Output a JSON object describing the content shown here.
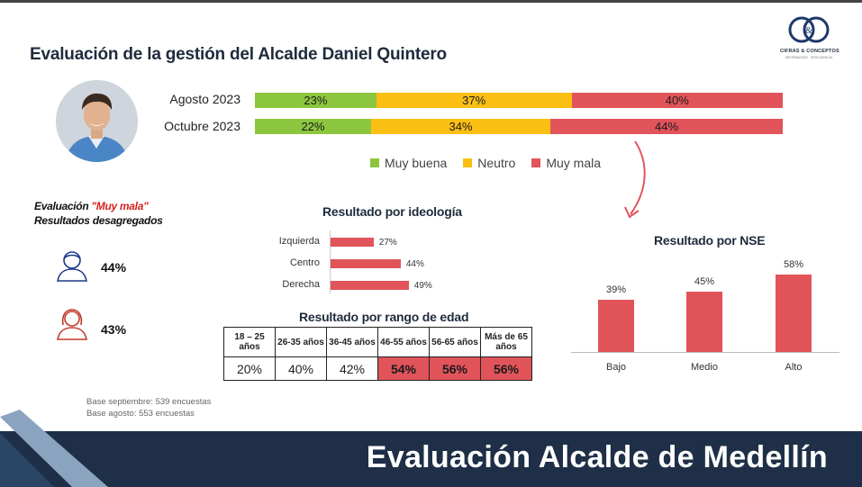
{
  "title": "Evaluación de la gestión del Alcalde Daniel Quintero",
  "logo": {
    "monogram": "C&C",
    "name": "CIFRAS & CONCEPTOS",
    "tagline": "INFORMACIÓN · INTELIGENCIA"
  },
  "colors": {
    "muy_buena": "#8cc63f",
    "neutro": "#fbbf14",
    "muy_mala": "#e0545a",
    "footer": "#1e2f47"
  },
  "chart_data": [
    {
      "type": "bar",
      "orientation": "horizontal-stacked-100",
      "categories": [
        "Agosto 2023",
        "Octubre 2023"
      ],
      "series": [
        {
          "name": "Muy buena",
          "values": [
            23,
            22
          ],
          "labels": [
            "23%",
            "22%"
          ]
        },
        {
          "name": "Neutro",
          "values": [
            37,
            34
          ],
          "labels": [
            "37%",
            "34%"
          ]
        },
        {
          "name": "Muy mala",
          "values": [
            40,
            44
          ],
          "labels": [
            "40%",
            "44%"
          ]
        }
      ],
      "legend_position": "bottom"
    },
    {
      "type": "bar",
      "orientation": "horizontal",
      "title": "Resultado por ideología",
      "categories": [
        "Izquierda",
        "Centro",
        "Derecha"
      ],
      "values": [
        27,
        44,
        49
      ],
      "labels": [
        "27%",
        "44%",
        "49%"
      ]
    },
    {
      "type": "bar",
      "title": "Resultado por NSE",
      "categories": [
        "Bajo",
        "Medio",
        "Alto"
      ],
      "values": [
        39,
        45,
        58
      ],
      "labels": [
        "39%",
        "45%",
        "58%"
      ]
    },
    {
      "type": "table",
      "title": "Resultado por rango de edad",
      "columns": [
        "18 – 25 años",
        "26-35 años",
        "36-45 años",
        "46-55 años",
        "56-65 años",
        "Más de 65 años"
      ],
      "values": [
        20,
        40,
        42,
        54,
        56,
        56
      ],
      "labels": [
        "20%",
        "40%",
        "42%",
        "54%",
        "56%",
        "56%"
      ],
      "highlighted": [
        false,
        false,
        false,
        true,
        true,
        true
      ]
    }
  ],
  "evaluation": {
    "title_prefix": "Evaluación ",
    "title_highlight": "\"Muy mala\"",
    "subtitle": "Resultados desagregados",
    "male_pct": "44%",
    "female_pct": "43%"
  },
  "notes": [
    "Base septiembre: 539 encuestas",
    "Base agosto: 553 encuestas"
  ],
  "footer": "Evaluación Alcalde de Medellín"
}
